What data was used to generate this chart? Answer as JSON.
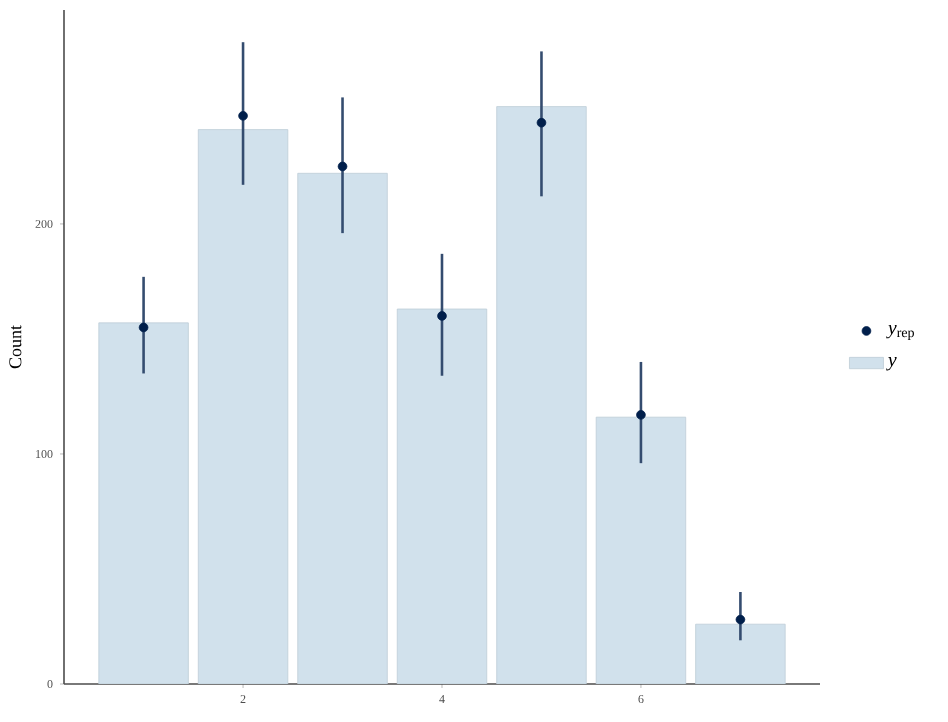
{
  "chart_data": {
    "type": "bar",
    "ylabel": "Count",
    "x": [
      1,
      2,
      3,
      4,
      5,
      6,
      7
    ],
    "xlim": [
      0.2,
      7.8
    ],
    "ylim": [
      0,
      293
    ],
    "xticks": [
      2,
      4,
      6
    ],
    "yticks": [
      0,
      100,
      200
    ],
    "legend": "right",
    "series": [
      {
        "name": "*y*",
        "color": "#d1e1ec",
        "values": [
          157,
          241,
          222,
          163,
          251,
          116,
          26
        ]
      },
      {
        "name": "*y*$_{rep}$",
        "type": "scatter",
        "marker": "circle",
        "color": "#011f4b",
        "values": [
          155,
          247,
          225,
          160,
          244,
          117,
          28
        ],
        "errors": [
          [
            135,
            177
          ],
          [
            217,
            279
          ],
          [
            196,
            255
          ],
          [
            134,
            187
          ],
          [
            212,
            275
          ],
          [
            96,
            140
          ],
          [
            19,
            40
          ]
        ]
      }
    ]
  }
}
